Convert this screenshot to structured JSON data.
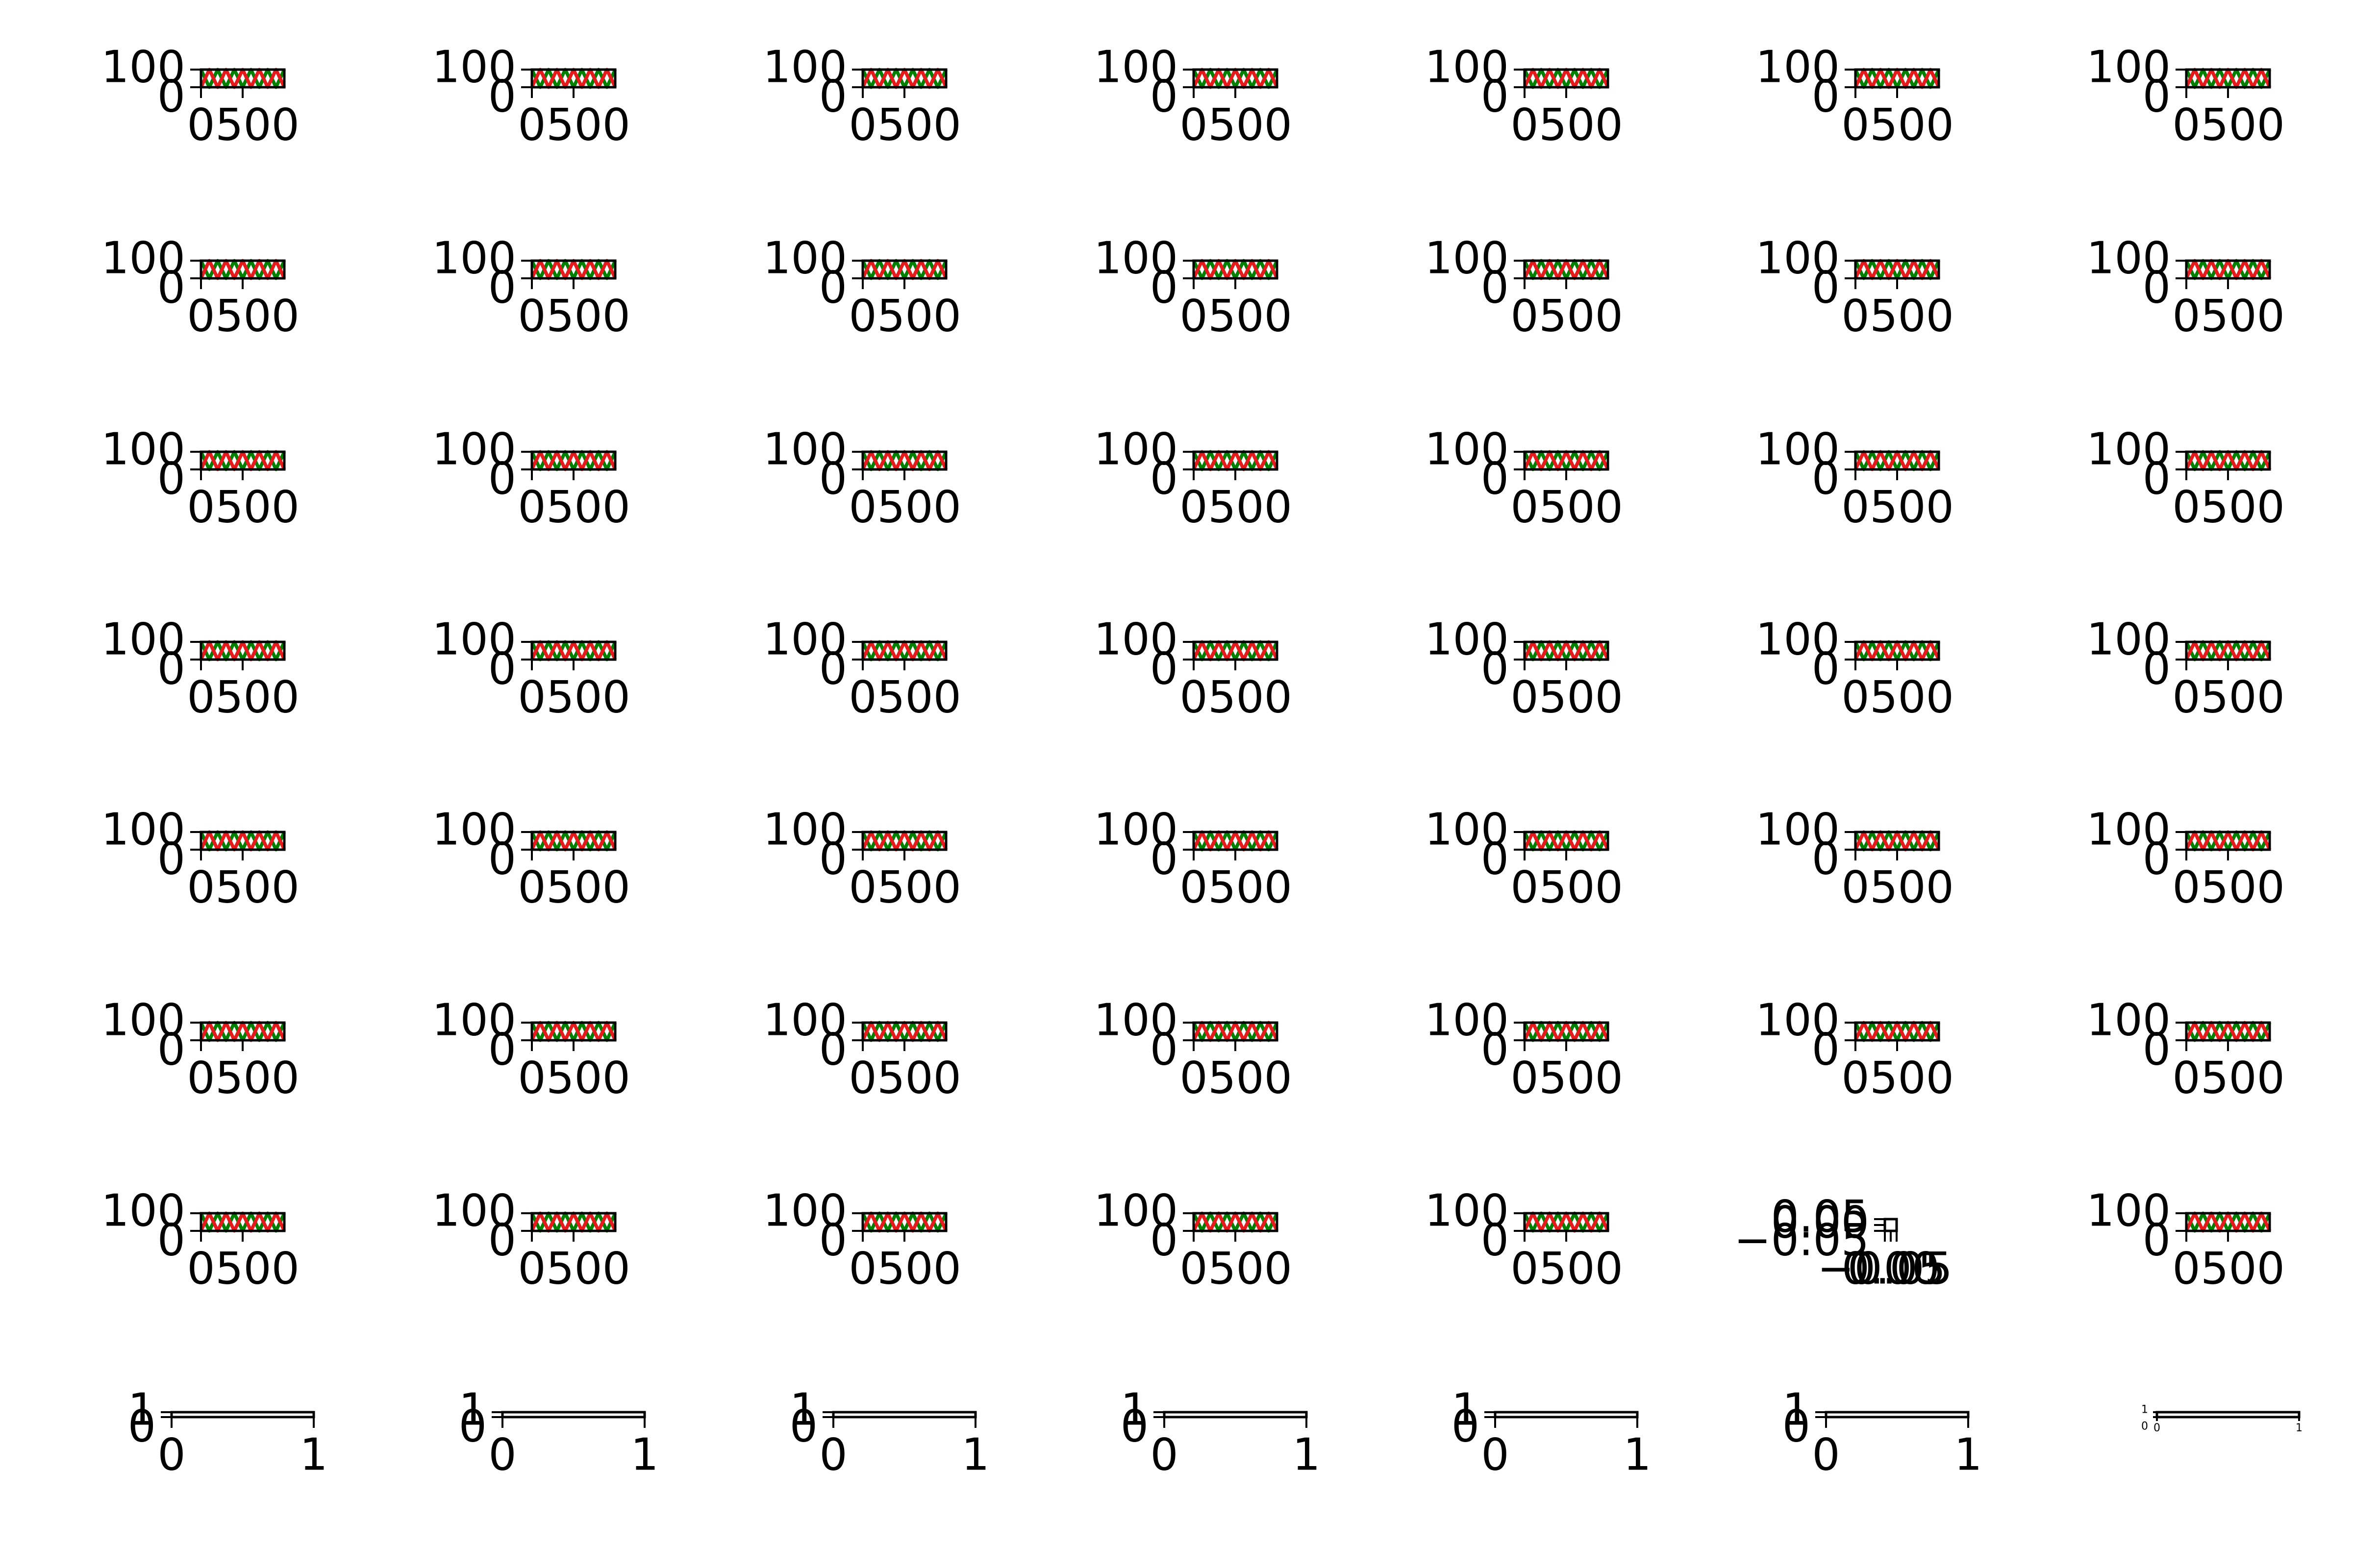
{
  "colors": {
    "background": "#ffffff",
    "axes": "#000000",
    "series_green": "#008000",
    "series_red": "#e41a1c"
  },
  "chart_data": {
    "type": "small-multiples",
    "grid": "8 rows x 7 columns",
    "title": "",
    "panels": {
      "trace": {
        "type": "line",
        "xlim": [
          0,
          1000
        ],
        "ylim": [
          0,
          100
        ],
        "xticks": [
          "0",
          "500"
        ],
        "yticks": [
          "0",
          "100"
        ],
        "series": [
          {
            "color": "#008000",
            "x": [
              0,
              100,
              200,
              300,
              400,
              500,
              600,
              700,
              800,
              900,
              1000
            ],
            "y": [
              100,
              0,
              100,
              0,
              100,
              0,
              100,
              0,
              100,
              0,
              100
            ]
          },
          {
            "color": "#e41a1c",
            "x": [
              0,
              100,
              200,
              300,
              400,
              500,
              600,
              700,
              800,
              900,
              1000
            ],
            "y": [
              0,
              100,
              0,
              100,
              0,
              100,
              0,
              100,
              0,
              100,
              0
            ]
          }
        ]
      },
      "empty": {
        "type": "line",
        "xlim": [
          -0.05,
          0.05
        ],
        "ylim": [
          -0.05,
          0.05
        ],
        "xticks": [
          "−0.05",
          "0.00",
          "0.05"
        ],
        "yticks": [
          "−0.05",
          "0.00",
          "0.05"
        ],
        "series": []
      },
      "blank": {
        "type": "line",
        "xlim": [
          0,
          1
        ],
        "ylim": [
          0,
          1
        ],
        "xticks": [
          "0",
          "1"
        ],
        "yticks": [
          "0",
          "1"
        ],
        "series": []
      }
    },
    "layout": [
      [
        "trace",
        "trace",
        "trace",
        "trace",
        "trace",
        "trace",
        "trace"
      ],
      [
        "trace",
        "trace",
        "trace",
        "trace",
        "trace",
        "trace",
        "trace"
      ],
      [
        "trace",
        "trace",
        "trace",
        "trace",
        "trace",
        "trace",
        "trace"
      ],
      [
        "trace",
        "trace",
        "trace",
        "trace",
        "trace",
        "trace",
        "trace"
      ],
      [
        "trace",
        "trace",
        "trace",
        "trace",
        "trace",
        "trace",
        "trace"
      ],
      [
        "trace",
        "trace",
        "trace",
        "trace",
        "trace",
        "trace",
        "trace"
      ],
      [
        "trace",
        "trace",
        "trace",
        "trace",
        "trace",
        "empty",
        "trace"
      ],
      [
        "blank",
        "blank",
        "blank",
        "blank",
        "blank",
        "blank",
        "blank"
      ]
    ]
  }
}
